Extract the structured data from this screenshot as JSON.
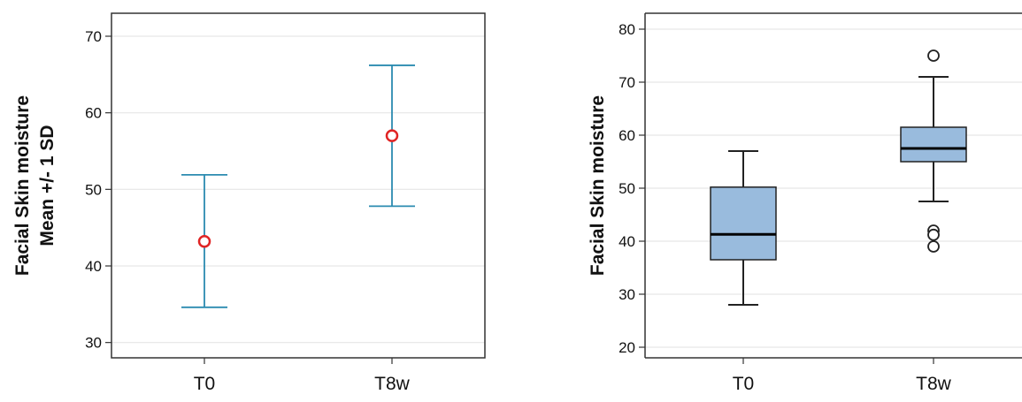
{
  "chart_data": [
    {
      "type": "errorbar",
      "ylabel_lines": [
        "Facial Skin moisture",
        "Mean +/- 1 SD"
      ],
      "ylim": [
        28,
        73
      ],
      "yticks": [
        30,
        40,
        50,
        60,
        70
      ],
      "categories": [
        "T0",
        "T8w"
      ],
      "points": [
        {
          "category": "T0",
          "mean": 43.2,
          "lower": 34.6,
          "upper": 51.9
        },
        {
          "category": "T8w",
          "mean": 57.0,
          "lower": 47.8,
          "upper": 66.2
        }
      ],
      "grid": true,
      "colors": {
        "bar": "#2b8bb0",
        "marker": "#e02424",
        "grid": "#e6e6e6",
        "frame": "#333333"
      }
    },
    {
      "type": "box",
      "ylabel_lines": [
        "Facial Skin moisture"
      ],
      "ylim": [
        18,
        83
      ],
      "yticks": [
        20,
        30,
        40,
        50,
        60,
        70,
        80
      ],
      "categories": [
        "T0",
        "T8w"
      ],
      "boxes": [
        {
          "category": "T0",
          "whisker_low": 28.0,
          "q1": 36.5,
          "median": 41.3,
          "q3": 50.2,
          "whisker_high": 57.0,
          "outliers": []
        },
        {
          "category": "T8w",
          "whisker_low": 47.5,
          "q1": 55.0,
          "median": 57.5,
          "q3": 61.5,
          "whisker_high": 71.0,
          "outliers": [
            75.0,
            42.0,
            41.2,
            39.0
          ]
        }
      ],
      "grid": true,
      "colors": {
        "box_fill": "#99bbdd",
        "box_stroke": "#222222",
        "grid": "#e6e6e6",
        "frame": "#333333"
      }
    }
  ]
}
